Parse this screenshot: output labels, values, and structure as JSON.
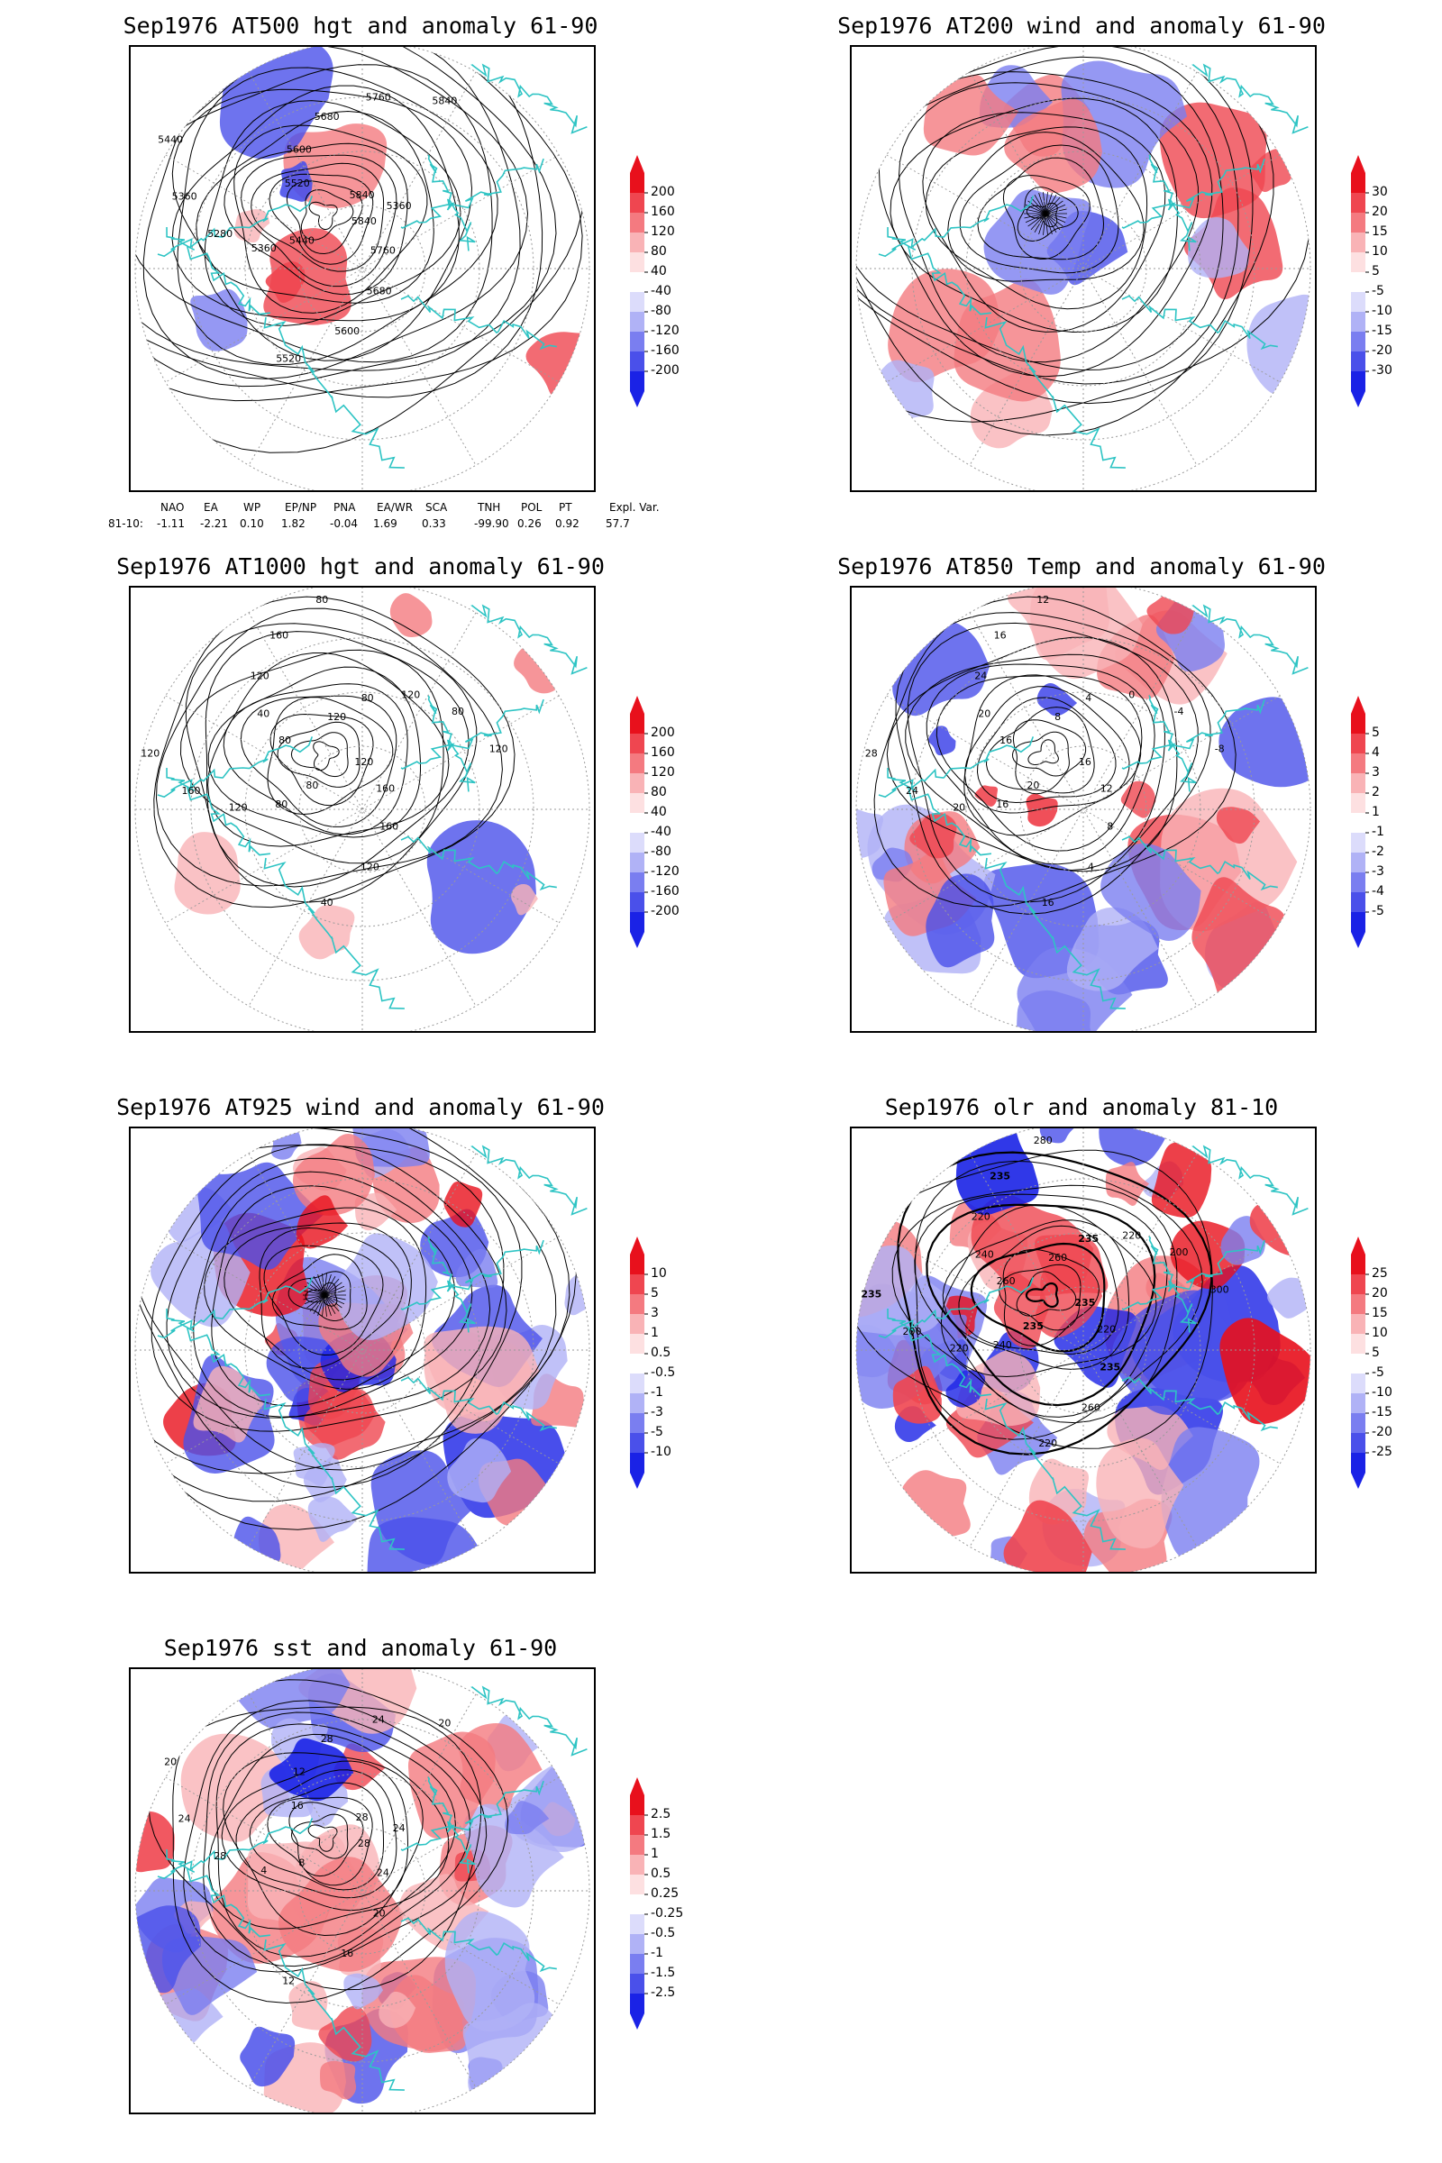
{
  "panels": [
    {
      "id": "p1",
      "title": "Sep1976 AT500 hgt and anomaly 61-90",
      "field": "hgt",
      "colorbar": [
        "200",
        "160",
        "120",
        "80",
        "40",
        "-40",
        "-80",
        "-120",
        "-160",
        "-200"
      ],
      "contour_labels": [
        "5840",
        "5760",
        "5680",
        "5600",
        "5520",
        "5440",
        "5360",
        "5280",
        "5360",
        "5440",
        "5520",
        "5600",
        "5680",
        "5760",
        "5840",
        "5840",
        "5360"
      ]
    },
    {
      "id": "p2",
      "title": "Sep1976 AT200 wind and anomaly 61-90",
      "field": "wind",
      "colorbar": [
        "30",
        "20",
        "15",
        "10",
        "5",
        "-5",
        "-10",
        "-15",
        "-20",
        "-30"
      ],
      "contour_labels": []
    },
    {
      "id": "p3",
      "title": "Sep1976 AT1000 hgt and anomaly 61-90",
      "field": "hgt1000",
      "colorbar": [
        "200",
        "160",
        "120",
        "80",
        "40",
        "-40",
        "-80",
        "-120",
        "-160",
        "-200"
      ],
      "contour_labels": [
        "120",
        "160",
        "160",
        "120",
        "40",
        "80",
        "80",
        "120",
        "160",
        "120",
        "80",
        "40",
        "120",
        "160",
        "80",
        "120",
        "80",
        "120",
        "80",
        "120"
      ]
    },
    {
      "id": "p4",
      "title": "Sep1976 AT850 Temp and anomaly 61-90",
      "field": "temp",
      "colorbar": [
        "5",
        "4",
        "3",
        "2",
        "1",
        "-1",
        "-2",
        "-3",
        "-4",
        "-5"
      ],
      "contour_labels": [
        "16",
        "12",
        "8",
        "4",
        "16",
        "20",
        "16",
        "20",
        "24",
        "28",
        "16",
        "20",
        "24",
        "16",
        "12",
        "8",
        "4",
        "0",
        "-4",
        "-8"
      ]
    },
    {
      "id": "p5",
      "title": "Sep1976 AT925 wind and anomaly 61-90",
      "field": "wind925",
      "colorbar": [
        "10",
        "5",
        "3",
        "1",
        "0.5",
        "-0.5",
        "-1",
        "-3",
        "-5",
        "-10"
      ],
      "contour_labels": []
    },
    {
      "id": "p6",
      "title": "Sep1976 olr and anomaly 81-10",
      "field": "olr",
      "colorbar": [
        "25",
        "20",
        "15",
        "10",
        "5",
        "-5",
        "-10",
        "-15",
        "-20",
        "-25"
      ],
      "contour_labels": [
        "235",
        "220",
        "235",
        "260",
        "220",
        "235",
        "240",
        "220",
        "200",
        "235",
        "260",
        "240",
        "220",
        "235",
        "280",
        "260",
        "235",
        "220",
        "200",
        "300"
      ]
    },
    {
      "id": "p7",
      "title": "Sep1976 sst and anomaly 61-90",
      "field": "sst",
      "colorbar": [
        "2.5",
        "1.5",
        "1",
        "0.5",
        "0.25",
        "-0.25",
        "-0.5",
        "-1",
        "-1.5",
        "-2.5"
      ],
      "contour_labels": [
        "28",
        "24",
        "20",
        "16",
        "12",
        "8",
        "4",
        "28",
        "24",
        "20",
        "16",
        "12",
        "28",
        "24",
        "20",
        "28",
        "24"
      ]
    }
  ],
  "indices": {
    "headers": [
      "NAO",
      "EA",
      "WP",
      "EP/NP",
      "PNA",
      "EA/WR",
      "SCA",
      "TNH",
      "POL",
      "PT",
      "Expl. Var."
    ],
    "row_label": "81-10:",
    "values": [
      "-1.11",
      "-2.21",
      "0.10",
      "1.82",
      "-0.04",
      "1.69",
      "0.33",
      "-99.90",
      "0.26",
      "0.92",
      "57.7"
    ]
  },
  "colors": {
    "coast": "#2ec4c4",
    "pos": "#e8202a",
    "neg": "#2a3ae8",
    "contour": "#000000",
    "grid": "#9a9a9a"
  }
}
